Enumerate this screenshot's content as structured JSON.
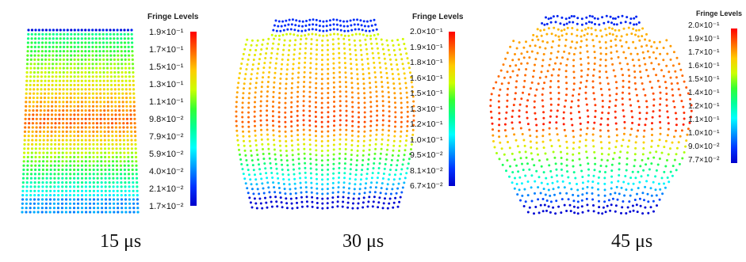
{
  "panels": [
    {
      "caption": "15 μs",
      "legend_title": "Fringe Levels",
      "levels": [
        "1.9×10⁻¹",
        "1.7×10⁻¹",
        "1.5×10⁻¹",
        "1.3×10⁻¹",
        "1.1×10⁻¹",
        "9.8×10⁻²",
        "7.9×10⁻²",
        "5.9×10⁻²",
        "4.0×10⁻²",
        "2.1×10⁻²",
        "1.7×10⁻²"
      ]
    },
    {
      "caption": "30 μs",
      "legend_title": "Fringe Levels",
      "levels": [
        "2.0×10⁻¹",
        "1.9×10⁻¹",
        "1.8×10⁻¹",
        "1.6×10⁻¹",
        "1.5×10⁻¹",
        "1.3×10⁻¹",
        "1.2×10⁻¹",
        "1.0×10⁻¹",
        "9.5×10⁻²",
        "8.1×10⁻²",
        "6.7×10⁻²"
      ]
    },
    {
      "caption": "45 μs",
      "legend_title": "Fringe Levels",
      "levels": [
        "2.0×10⁻¹",
        "1.9×10⁻¹",
        "1.7×10⁻¹",
        "1.6×10⁻¹",
        "1.5×10⁻¹",
        "1.4×10⁻¹",
        "1.2×10⁻¹",
        "1.1×10⁻¹",
        "1.0×10⁻¹",
        "9.0×10⁻²",
        "7.7×10⁻²"
      ]
    }
  ],
  "colormap": [
    "#ff0000",
    "#ff6600",
    "#ffcc00",
    "#ccff00",
    "#33ff33",
    "#00ff99",
    "#00ffff",
    "#0099ff",
    "#0033ff",
    "#0000cc"
  ]
}
